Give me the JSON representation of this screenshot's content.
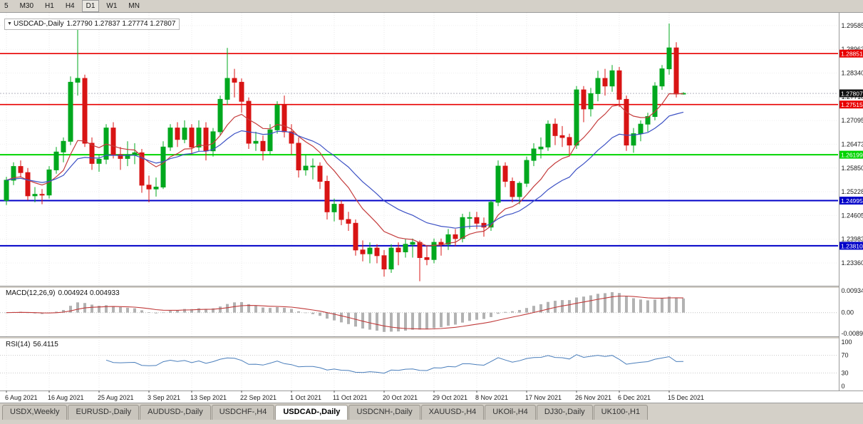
{
  "toolbar": {
    "timeframes": [
      {
        "label": "5",
        "active": false
      },
      {
        "label": "M30",
        "active": false
      },
      {
        "label": "H1",
        "active": false
      },
      {
        "label": "H4",
        "active": false
      },
      {
        "label": "D1",
        "active": true
      },
      {
        "label": "W1",
        "active": false
      },
      {
        "label": "MN",
        "active": false
      }
    ]
  },
  "chart": {
    "title": "USDCAD-,Daily",
    "ohlc_label": "1.27790 1.27837 1.27774 1.27807",
    "collapse_arrow": "▼"
  },
  "chart_data": {
    "type": "candlestick",
    "symbol": "USDCAD-",
    "timeframe": "Daily",
    "current_bar": {
      "open": "1.27790",
      "high": "1.27837",
      "low": "1.27774",
      "close": "1.27807"
    },
    "ylim": [
      1.2278,
      1.2992
    ],
    "y_ticks": [
      "1.29585",
      "1.28963",
      "1.28340",
      "1.27718",
      "1.27095",
      "1.26473",
      "1.25850",
      "1.25228",
      "1.24605",
      "1.23983",
      "1.23360"
    ],
    "x_ticks": [
      {
        "i": 0,
        "label": "6 Aug 2021"
      },
      {
        "i": 6,
        "label": "16 Aug 2021"
      },
      {
        "i": 13,
        "label": "25 Aug 2021"
      },
      {
        "i": 20,
        "label": "3 Sep 2021"
      },
      {
        "i": 26,
        "label": "13 Sep 2021"
      },
      {
        "i": 33,
        "label": "22 Sep 2021"
      },
      {
        "i": 40,
        "label": "1 Oct 2021"
      },
      {
        "i": 46,
        "label": "11 Oct 2021"
      },
      {
        "i": 53,
        "label": "20 Oct 2021"
      },
      {
        "i": 60,
        "label": "29 Oct 2021"
      },
      {
        "i": 66,
        "label": "8 Nov 2021"
      },
      {
        "i": 73,
        "label": "17 Nov 2021"
      },
      {
        "i": 80,
        "label": "26 Nov 2021"
      },
      {
        "i": 86,
        "label": "6 Dec 2021"
      },
      {
        "i": 93,
        "label": "15 Dec 2021"
      }
    ],
    "hlines": [
      {
        "price": 1.28851,
        "label": "1.28851",
        "color": "#e80000",
        "width": 1.6
      },
      {
        "price": 1.27515,
        "label": "1.27515",
        "color": "#e80000",
        "width": 1.6
      },
      {
        "price": 1.26199,
        "label": "1.26199",
        "color": "#00d400",
        "width": 2
      },
      {
        "price": 1.24995,
        "label": "1.24995",
        "color": "#0000c8",
        "width": 2
      },
      {
        "price": 1.2381,
        "label": "1.23810",
        "color": "#0000c8",
        "width": 2
      }
    ],
    "current_price": {
      "value": "1.27807",
      "tag_color": "#101010"
    },
    "colors": {
      "up": "#00a81e",
      "down": "#d81414",
      "ma_fast": "#c43b3b",
      "ma_slow": "#3b50c4"
    },
    "overlays": {
      "fast_period": 10,
      "slow_period": 21
    },
    "candles": [
      [
        1.25,
        1.2562,
        1.2488,
        1.2553
      ],
      [
        1.2553,
        1.26,
        1.254,
        1.2589
      ],
      [
        1.2589,
        1.2605,
        1.256,
        1.2573
      ],
      [
        1.2573,
        1.2585,
        1.25,
        1.2512
      ],
      [
        1.2512,
        1.2535,
        1.2495,
        1.2516
      ],
      [
        1.2516,
        1.253,
        1.249,
        1.2514
      ],
      [
        1.2514,
        1.259,
        1.2505,
        1.258
      ],
      [
        1.258,
        1.264,
        1.257,
        1.2627
      ],
      [
        1.2627,
        1.2665,
        1.26,
        1.2655
      ],
      [
        1.2655,
        1.2825,
        1.2645,
        1.281
      ],
      [
        1.281,
        1.2949,
        1.2775,
        1.282
      ],
      [
        1.282,
        1.283,
        1.264,
        1.265
      ],
      [
        1.265,
        1.2665,
        1.258,
        1.2597
      ],
      [
        1.2597,
        1.262,
        1.2575,
        1.2608
      ],
      [
        1.2608,
        1.27,
        1.2595,
        1.269
      ],
      [
        1.269,
        1.2705,
        1.261,
        1.262
      ],
      [
        1.262,
        1.264,
        1.258,
        1.261
      ],
      [
        1.261,
        1.2655,
        1.259,
        1.262
      ],
      [
        1.262,
        1.265,
        1.2595,
        1.2625
      ],
      [
        1.2625,
        1.2635,
        1.252,
        1.254
      ],
      [
        1.254,
        1.2565,
        1.2495,
        1.253
      ],
      [
        1.253,
        1.256,
        1.251,
        1.2535
      ],
      [
        1.2535,
        1.2655,
        1.253,
        1.264
      ],
      [
        1.264,
        1.27,
        1.263,
        1.269
      ],
      [
        1.269,
        1.2705,
        1.264,
        1.266
      ],
      [
        1.266,
        1.271,
        1.265,
        1.269
      ],
      [
        1.269,
        1.27,
        1.262,
        1.264
      ],
      [
        1.264,
        1.271,
        1.263,
        1.269
      ],
      [
        1.269,
        1.2705,
        1.2605,
        1.263
      ],
      [
        1.263,
        1.269,
        1.2615,
        1.268
      ],
      [
        1.268,
        1.2775,
        1.267,
        1.2765
      ],
      [
        1.2765,
        1.29,
        1.275,
        1.282
      ],
      [
        1.282,
        1.2845,
        1.277,
        1.281
      ],
      [
        1.281,
        1.282,
        1.273,
        1.276
      ],
      [
        1.276,
        1.277,
        1.2635,
        1.265
      ],
      [
        1.265,
        1.268,
        1.263,
        1.2655
      ],
      [
        1.2655,
        1.267,
        1.2605,
        1.263
      ],
      [
        1.263,
        1.27,
        1.262,
        1.2685
      ],
      [
        1.2685,
        1.276,
        1.2675,
        1.275
      ],
      [
        1.275,
        1.2775,
        1.2665,
        1.268
      ],
      [
        1.268,
        1.27,
        1.262,
        1.265
      ],
      [
        1.265,
        1.2665,
        1.256,
        1.258
      ],
      [
        1.258,
        1.262,
        1.2565,
        1.259
      ],
      [
        1.259,
        1.261,
        1.2555,
        1.259
      ],
      [
        1.259,
        1.26,
        1.253,
        1.255
      ],
      [
        1.255,
        1.2565,
        1.245,
        1.247
      ],
      [
        1.247,
        1.2505,
        1.2445,
        1.249
      ],
      [
        1.249,
        1.25,
        1.2435,
        1.245
      ],
      [
        1.245,
        1.247,
        1.242,
        1.244
      ],
      [
        1.244,
        1.245,
        1.2355,
        1.237
      ],
      [
        1.237,
        1.2395,
        1.234,
        1.236
      ],
      [
        1.236,
        1.239,
        1.2335,
        1.2375
      ],
      [
        1.2375,
        1.2385,
        1.2335,
        1.2355
      ],
      [
        1.2355,
        1.237,
        1.23,
        1.232
      ],
      [
        1.232,
        1.2385,
        1.231,
        1.2375
      ],
      [
        1.2375,
        1.239,
        1.233,
        1.2365
      ],
      [
        1.2365,
        1.24,
        1.235,
        1.2385
      ],
      [
        1.2385,
        1.24,
        1.235,
        1.239
      ],
      [
        1.239,
        1.2395,
        1.2288,
        1.235
      ],
      [
        1.235,
        1.238,
        1.233,
        1.2345
      ],
      [
        1.2345,
        1.24,
        1.2335,
        1.239
      ],
      [
        1.239,
        1.24,
        1.2355,
        1.2385
      ],
      [
        1.2385,
        1.2425,
        1.237,
        1.241
      ],
      [
        1.241,
        1.2425,
        1.238,
        1.24
      ],
      [
        1.24,
        1.2465,
        1.239,
        1.2455
      ],
      [
        1.2455,
        1.247,
        1.2425,
        1.2455
      ],
      [
        1.2455,
        1.247,
        1.2425,
        1.244
      ],
      [
        1.244,
        1.2455,
        1.2405,
        1.243
      ],
      [
        1.243,
        1.25,
        1.242,
        1.2495
      ],
      [
        1.2495,
        1.2605,
        1.2485,
        1.259
      ],
      [
        1.259,
        1.26,
        1.2535,
        1.255
      ],
      [
        1.255,
        1.256,
        1.2495,
        1.251
      ],
      [
        1.251,
        1.255,
        1.249,
        1.2545
      ],
      [
        1.2545,
        1.2615,
        1.2535,
        1.2605
      ],
      [
        1.2605,
        1.265,
        1.259,
        1.2635
      ],
      [
        1.2635,
        1.2665,
        1.261,
        1.264
      ],
      [
        1.264,
        1.271,
        1.263,
        1.27
      ],
      [
        1.27,
        1.2715,
        1.2645,
        1.267
      ],
      [
        1.267,
        1.2695,
        1.264,
        1.2665
      ],
      [
        1.2665,
        1.2675,
        1.262,
        1.2645
      ],
      [
        1.2645,
        1.28,
        1.2635,
        1.279
      ],
      [
        1.279,
        1.28,
        1.2705,
        1.274
      ],
      [
        1.274,
        1.2795,
        1.272,
        1.278
      ],
      [
        1.278,
        1.284,
        1.276,
        1.282
      ],
      [
        1.282,
        1.2845,
        1.2775,
        1.28
      ],
      [
        1.28,
        1.2855,
        1.2785,
        1.284
      ],
      [
        1.284,
        1.285,
        1.2745,
        1.2765
      ],
      [
        1.2765,
        1.2775,
        1.263,
        1.2645
      ],
      [
        1.2645,
        1.269,
        1.2625,
        1.2675
      ],
      [
        1.2675,
        1.271,
        1.2655,
        1.27
      ],
      [
        1.27,
        1.273,
        1.268,
        1.272
      ],
      [
        1.272,
        1.281,
        1.271,
        1.28
      ],
      [
        1.28,
        1.2855,
        1.279,
        1.2845
      ],
      [
        1.2845,
        1.2964,
        1.283,
        1.29
      ],
      [
        1.29,
        1.2915,
        1.277,
        1.2779
      ],
      [
        1.2779,
        1.27837,
        1.27774,
        1.27807
      ]
    ]
  },
  "macd": {
    "label": "MACD(12,26,9)",
    "values": "0.004924 0.004933",
    "params": {
      "fast": 12,
      "slow": 26,
      "signal": 9
    },
    "ylim": [
      -0.008902,
      0.009345
    ],
    "y_ticks": [
      "0.009345",
      "0.00",
      "-0.008902"
    ],
    "bar_color": "#b2b2b2",
    "line_color": "#c03a3a"
  },
  "rsi": {
    "label": "RSI(14)",
    "value": "56.4115",
    "period": 14,
    "ylim": [
      0,
      100
    ],
    "y_ticks": [
      "100",
      "70",
      "30",
      "0"
    ],
    "levels": [
      70,
      30
    ],
    "color": "#4a7ebb"
  },
  "tabs": [
    {
      "label": "USDX,Weekly",
      "active": false
    },
    {
      "label": "EURUSD-,Daily",
      "active": false
    },
    {
      "label": "AUDUSD-,Daily",
      "active": false
    },
    {
      "label": "USDCHF-,H4",
      "active": false
    },
    {
      "label": "USDCAD-,Daily",
      "active": true
    },
    {
      "label": "USDCNH-,Daily",
      "active": false
    },
    {
      "label": "XAUUSD-,H4",
      "active": false
    },
    {
      "label": "UKOil-,H4",
      "active": false
    },
    {
      "label": "DJ30-,Daily",
      "active": false
    },
    {
      "label": "UK100-,H1",
      "active": false
    }
  ]
}
